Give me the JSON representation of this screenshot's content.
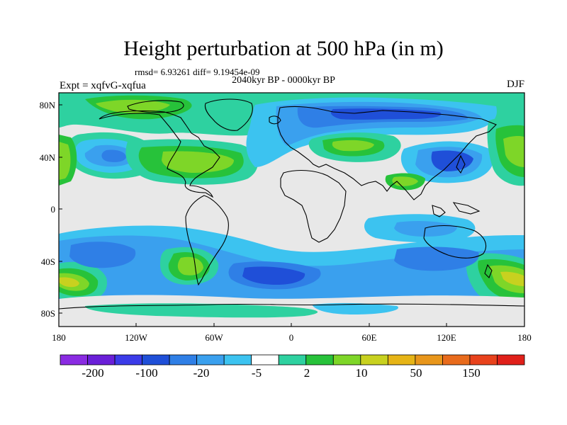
{
  "title": "Height perturbation at 500 hPa (in m)",
  "stats_text": "rmsd= 6.93261 diff= 9.19454e-09",
  "period": "2040kyr BP - 0000kyr BP",
  "experiment": "Expt = xqfvG-xqfua",
  "season": "DJF",
  "map": {
    "lat_labels": [
      "80N",
      "40N",
      "0",
      "40S",
      "80S"
    ],
    "lon_labels": [
      "180",
      "120W",
      "60W",
      "0",
      "60E",
      "120E",
      "180"
    ],
    "land_color": "#000000"
  },
  "colorbar": {
    "colors": [
      "#8a2be2",
      "#6a1fd8",
      "#3b3be8",
      "#1f4fd8",
      "#2f7fe6",
      "#3aa0ee",
      "#3cc3f0",
      "#ffffff",
      "#2ed1a0",
      "#27c23a",
      "#7ed628",
      "#c8d11f",
      "#e6b416",
      "#e8961b",
      "#e86b1c",
      "#e8421c",
      "#e0201a"
    ],
    "labels": [
      "-200",
      "-100",
      "-20",
      "-5",
      "2",
      "10",
      "50",
      "150"
    ]
  }
}
